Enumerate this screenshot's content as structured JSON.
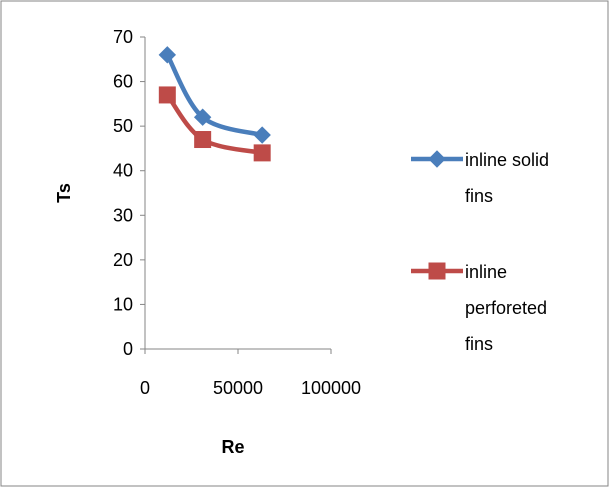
{
  "chart_data": {
    "type": "scatter",
    "title": "",
    "xlabel": "Re",
    "ylabel": "Ts",
    "xlim": [
      0,
      100000
    ],
    "ylim": [
      0,
      70
    ],
    "xticks": [
      0,
      50000,
      100000
    ],
    "yticks": [
      0,
      10,
      20,
      30,
      40,
      50,
      60,
      70
    ],
    "xtick_labels": [
      "0",
      "50000",
      "100000"
    ],
    "ytick_labels": [
      "0",
      "10",
      "20",
      "30",
      "40",
      "50",
      "60",
      "70"
    ],
    "grid": false,
    "legend_position": "right",
    "series": [
      {
        "name_lines": [
          "inline solid",
          "fins"
        ],
        "color": "#4a7ebb",
        "marker": "diamond",
        "x": [
          12000,
          31000,
          63000
        ],
        "y": [
          66,
          52,
          48
        ]
      },
      {
        "name_lines": [
          "inline",
          "perforeted",
          "fins"
        ],
        "color": "#be4b48",
        "marker": "square",
        "x": [
          12000,
          31000,
          63000
        ],
        "y": [
          57,
          47,
          44
        ]
      }
    ]
  }
}
